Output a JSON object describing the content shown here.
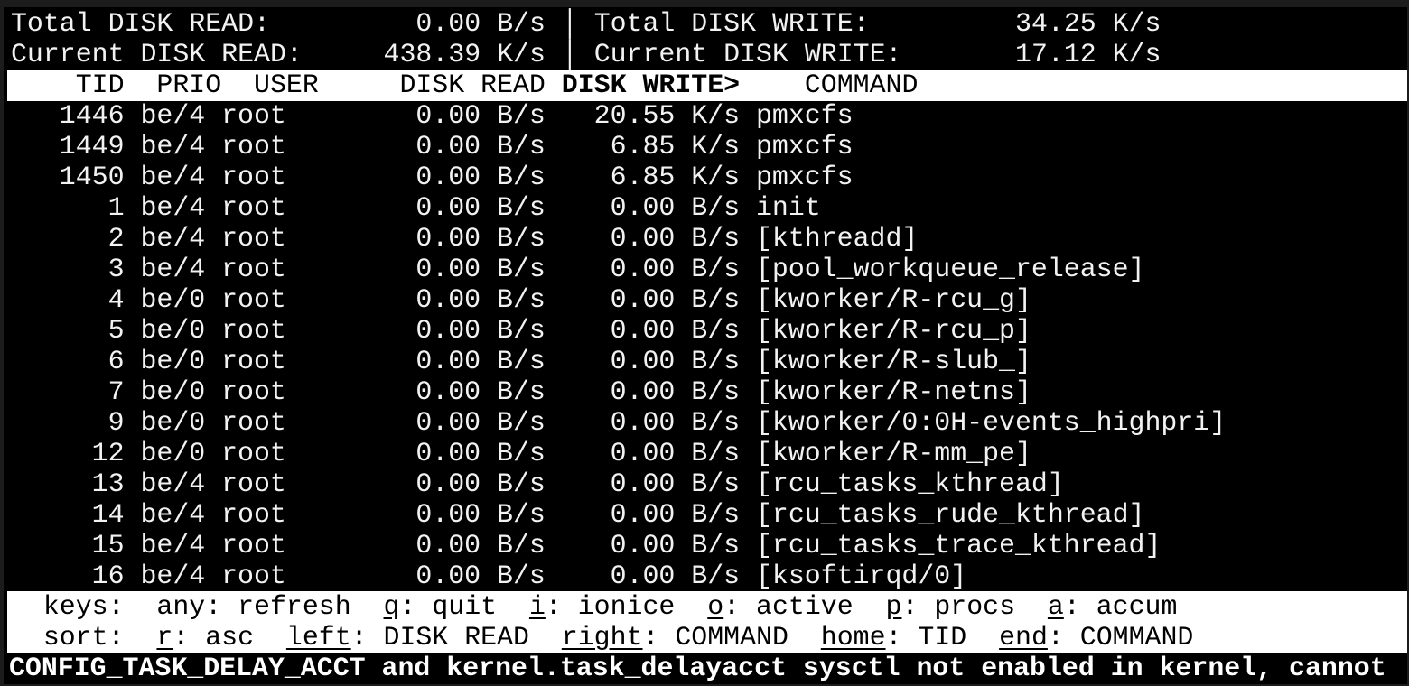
{
  "summary": {
    "total_read_label": "Total DISK READ:",
    "total_read_value": "0.00 B/s",
    "total_write_label": "Total DISK WRITE:",
    "total_write_value": "34.25 K/s",
    "current_read_label": "Current DISK READ:",
    "current_read_value": "438.39 K/s",
    "current_write_label": "Current DISK WRITE:",
    "current_write_value": "17.12 K/s",
    "separator": "│"
  },
  "columns": {
    "tid": "TID",
    "prio": "PRIO",
    "user": "USER",
    "disk_read": "DISK READ",
    "disk_write": "DISK WRITE>",
    "command": "COMMAND"
  },
  "rows": [
    {
      "tid": "1446",
      "prio": "be/4",
      "user": "root",
      "read": "0.00 B/s",
      "write": "20.55 K/s",
      "command": "pmxcfs"
    },
    {
      "tid": "1449",
      "prio": "be/4",
      "user": "root",
      "read": "0.00 B/s",
      "write": "6.85 K/s",
      "command": "pmxcfs"
    },
    {
      "tid": "1450",
      "prio": "be/4",
      "user": "root",
      "read": "0.00 B/s",
      "write": "6.85 K/s",
      "command": "pmxcfs"
    },
    {
      "tid": "1",
      "prio": "be/4",
      "user": "root",
      "read": "0.00 B/s",
      "write": "0.00 B/s",
      "command": "init"
    },
    {
      "tid": "2",
      "prio": "be/4",
      "user": "root",
      "read": "0.00 B/s",
      "write": "0.00 B/s",
      "command": "[kthreadd]"
    },
    {
      "tid": "3",
      "prio": "be/4",
      "user": "root",
      "read": "0.00 B/s",
      "write": "0.00 B/s",
      "command": "[pool_workqueue_release]"
    },
    {
      "tid": "4",
      "prio": "be/0",
      "user": "root",
      "read": "0.00 B/s",
      "write": "0.00 B/s",
      "command": "[kworker/R-rcu_g]"
    },
    {
      "tid": "5",
      "prio": "be/0",
      "user": "root",
      "read": "0.00 B/s",
      "write": "0.00 B/s",
      "command": "[kworker/R-rcu_p]"
    },
    {
      "tid": "6",
      "prio": "be/0",
      "user": "root",
      "read": "0.00 B/s",
      "write": "0.00 B/s",
      "command": "[kworker/R-slub_]"
    },
    {
      "tid": "7",
      "prio": "be/0",
      "user": "root",
      "read": "0.00 B/s",
      "write": "0.00 B/s",
      "command": "[kworker/R-netns]"
    },
    {
      "tid": "9",
      "prio": "be/0",
      "user": "root",
      "read": "0.00 B/s",
      "write": "0.00 B/s",
      "command": "[kworker/0:0H-events_highpri]"
    },
    {
      "tid": "12",
      "prio": "be/0",
      "user": "root",
      "read": "0.00 B/s",
      "write": "0.00 B/s",
      "command": "[kworker/R-mm_pe]"
    },
    {
      "tid": "13",
      "prio": "be/4",
      "user": "root",
      "read": "0.00 B/s",
      "write": "0.00 B/s",
      "command": "[rcu_tasks_kthread]"
    },
    {
      "tid": "14",
      "prio": "be/4",
      "user": "root",
      "read": "0.00 B/s",
      "write": "0.00 B/s",
      "command": "[rcu_tasks_rude_kthread]"
    },
    {
      "tid": "15",
      "prio": "be/4",
      "user": "root",
      "read": "0.00 B/s",
      "write": "0.00 B/s",
      "command": "[rcu_tasks_trace_kthread]"
    },
    {
      "tid": "16",
      "prio": "be/4",
      "user": "root",
      "read": "0.00 B/s",
      "write": "0.00 B/s",
      "command": "[ksoftirqd/0]"
    }
  ],
  "keys": {
    "label": "keys:",
    "items": [
      {
        "key": "any",
        "label": "refresh",
        "underline": false
      },
      {
        "key": "q",
        "label": "quit",
        "underline": true
      },
      {
        "key": "i",
        "label": "ionice",
        "underline": true
      },
      {
        "key": "o",
        "label": "active",
        "underline": true
      },
      {
        "key": "p",
        "label": "procs",
        "underline": true
      },
      {
        "key": "a",
        "label": "accum",
        "underline": true
      }
    ]
  },
  "sort": {
    "label": "sort:",
    "items": [
      {
        "key": "r",
        "label": "asc"
      },
      {
        "key": "left",
        "label": "DISK READ"
      },
      {
        "key": "right",
        "label": "COMMAND"
      },
      {
        "key": "home",
        "label": "TID"
      },
      {
        "key": "end",
        "label": "COMMAND"
      }
    ]
  },
  "status_message": "CONFIG_TASK_DELAY_ACCT and kernel.task_delayacct sysctl not enabled in kernel, cannot",
  "colors": {
    "background": "#000000",
    "foreground": "#f2f2f2",
    "bar": "#ffffff"
  }
}
